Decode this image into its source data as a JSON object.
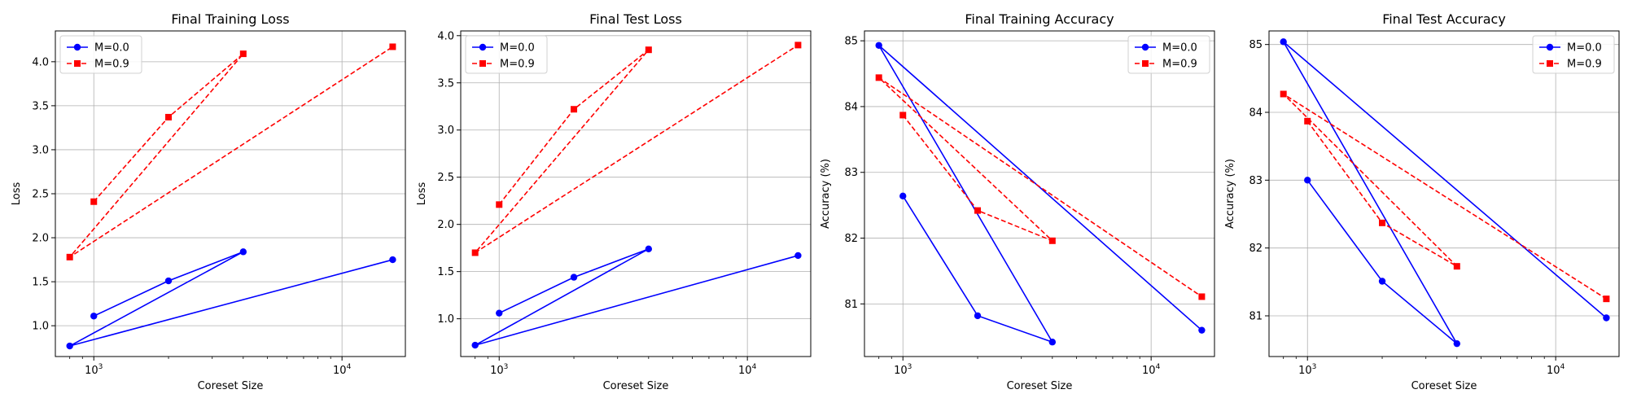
{
  "colors": {
    "m00": "#0000ff",
    "m09": "#ff0000",
    "grid": "#b0b0b0",
    "axis": "#000000"
  },
  "chart_data": [
    {
      "type": "line",
      "title": "Final Training Loss",
      "xlabel": "Coreset Size",
      "ylabel": "Loss",
      "xscale": "log",
      "xlim": [
        700,
        18000
      ],
      "ylim": [
        0.65,
        4.35
      ],
      "yticks": [
        "1.0",
        "1.5",
        "2.0",
        "2.5",
        "3.0",
        "3.5",
        "4.0"
      ],
      "ytick_values": [
        1.0,
        1.5,
        2.0,
        2.5,
        3.0,
        3.5,
        4.0
      ],
      "xticks": [
        {
          "base": "10",
          "exp": "3",
          "value": 1000
        },
        {
          "base": "10",
          "exp": "4",
          "value": 10000
        }
      ],
      "grid": true,
      "legend": "top-left",
      "series": [
        {
          "name": "M=0.0",
          "marker": "circle",
          "style": "solid",
          "x": [
            1000,
            2000,
            4000,
            800,
            16000
          ],
          "y": [
            1.11,
            1.51,
            1.84,
            0.77,
            1.75
          ]
        },
        {
          "name": "M=0.9",
          "marker": "square",
          "style": "dashed",
          "x": [
            1000,
            2000,
            4000,
            800,
            16000
          ],
          "y": [
            2.41,
            3.37,
            4.09,
            1.78,
            4.17
          ]
        }
      ]
    },
    {
      "type": "line",
      "title": "Final Test Loss",
      "xlabel": "Coreset Size",
      "ylabel": "Loss",
      "xscale": "log",
      "xlim": [
        700,
        18000
      ],
      "ylim": [
        0.6,
        4.05
      ],
      "yticks": [
        "1.0",
        "1.5",
        "2.0",
        "2.5",
        "3.0",
        "3.5",
        "4.0"
      ],
      "ytick_values": [
        1.0,
        1.5,
        2.0,
        2.5,
        3.0,
        3.5,
        4.0
      ],
      "xticks": [
        {
          "base": "10",
          "exp": "3",
          "value": 1000
        },
        {
          "base": "10",
          "exp": "4",
          "value": 10000
        }
      ],
      "grid": true,
      "legend": "top-left",
      "series": [
        {
          "name": "M=0.0",
          "marker": "circle",
          "style": "solid",
          "x": [
            1000,
            2000,
            4000,
            800,
            16000
          ],
          "y": [
            1.06,
            1.44,
            1.74,
            0.72,
            1.67
          ]
        },
        {
          "name": "M=0.9",
          "marker": "square",
          "style": "dashed",
          "x": [
            1000,
            2000,
            4000,
            800,
            16000
          ],
          "y": [
            2.21,
            3.22,
            3.85,
            1.7,
            3.9
          ]
        }
      ]
    },
    {
      "type": "line",
      "title": "Final Training Accuracy",
      "xlabel": "Coreset Size",
      "ylabel": "Accuracy (%)",
      "xscale": "log",
      "xlim": [
        700,
        18000
      ],
      "ylim": [
        80.2,
        85.15
      ],
      "yticks": [
        "81",
        "82",
        "83",
        "84",
        "85"
      ],
      "ytick_values": [
        81,
        82,
        83,
        84,
        85
      ],
      "xticks": [
        {
          "base": "10",
          "exp": "3",
          "value": 1000
        },
        {
          "base": "10",
          "exp": "4",
          "value": 10000
        }
      ],
      "grid": true,
      "legend": "top-right",
      "series": [
        {
          "name": "M=0.0",
          "marker": "circle",
          "style": "solid",
          "x": [
            1000,
            2000,
            4000,
            800,
            16000
          ],
          "y": [
            82.64,
            80.82,
            80.42,
            84.93,
            80.6
          ]
        },
        {
          "name": "M=0.9",
          "marker": "square",
          "style": "dashed",
          "x": [
            1000,
            2000,
            4000,
            800,
            16000
          ],
          "y": [
            83.87,
            82.42,
            81.96,
            84.44,
            81.11
          ]
        }
      ]
    },
    {
      "type": "line",
      "title": "Final Test Accuracy",
      "xlabel": "Coreset Size",
      "ylabel": "Accuracy (%)",
      "xscale": "log",
      "xlim": [
        700,
        18000
      ],
      "ylim": [
        80.4,
        85.2
      ],
      "yticks": [
        "81",
        "82",
        "83",
        "84",
        "85"
      ],
      "ytick_values": [
        81,
        82,
        83,
        84,
        85
      ],
      "xticks": [
        {
          "base": "10",
          "exp": "3",
          "value": 1000
        },
        {
          "base": "10",
          "exp": "4",
          "value": 10000
        }
      ],
      "grid": true,
      "legend": "top-right",
      "series": [
        {
          "name": "M=0.0",
          "marker": "circle",
          "style": "solid",
          "x": [
            1000,
            2000,
            4000,
            800,
            16000
          ],
          "y": [
            83.0,
            81.51,
            80.59,
            85.04,
            80.97
          ]
        },
        {
          "name": "M=0.9",
          "marker": "square",
          "style": "dashed",
          "x": [
            1000,
            2000,
            4000,
            800,
            16000
          ],
          "y": [
            83.87,
            82.37,
            81.73,
            84.27,
            81.25
          ]
        }
      ]
    }
  ]
}
